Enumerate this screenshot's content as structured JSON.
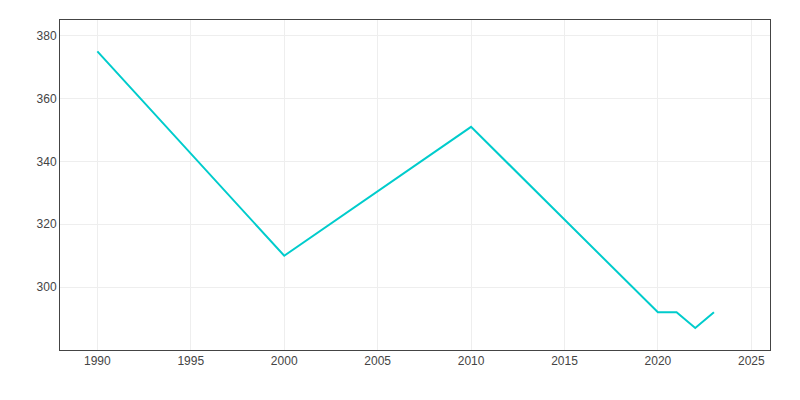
{
  "chart_data": {
    "type": "line",
    "x": [
      1990,
      2000,
      2010,
      2020,
      2021,
      2022,
      2023
    ],
    "values": [
      375,
      310,
      351,
      292,
      292,
      287,
      292
    ],
    "color": "#00CCCC",
    "xlim": [
      1988,
      2026
    ],
    "ylim": [
      280,
      385
    ],
    "xticks": [
      1990,
      1995,
      2000,
      2005,
      2010,
      2015,
      2020,
      2025
    ],
    "yticks": [
      300,
      320,
      340,
      360,
      380
    ],
    "grid": true
  }
}
